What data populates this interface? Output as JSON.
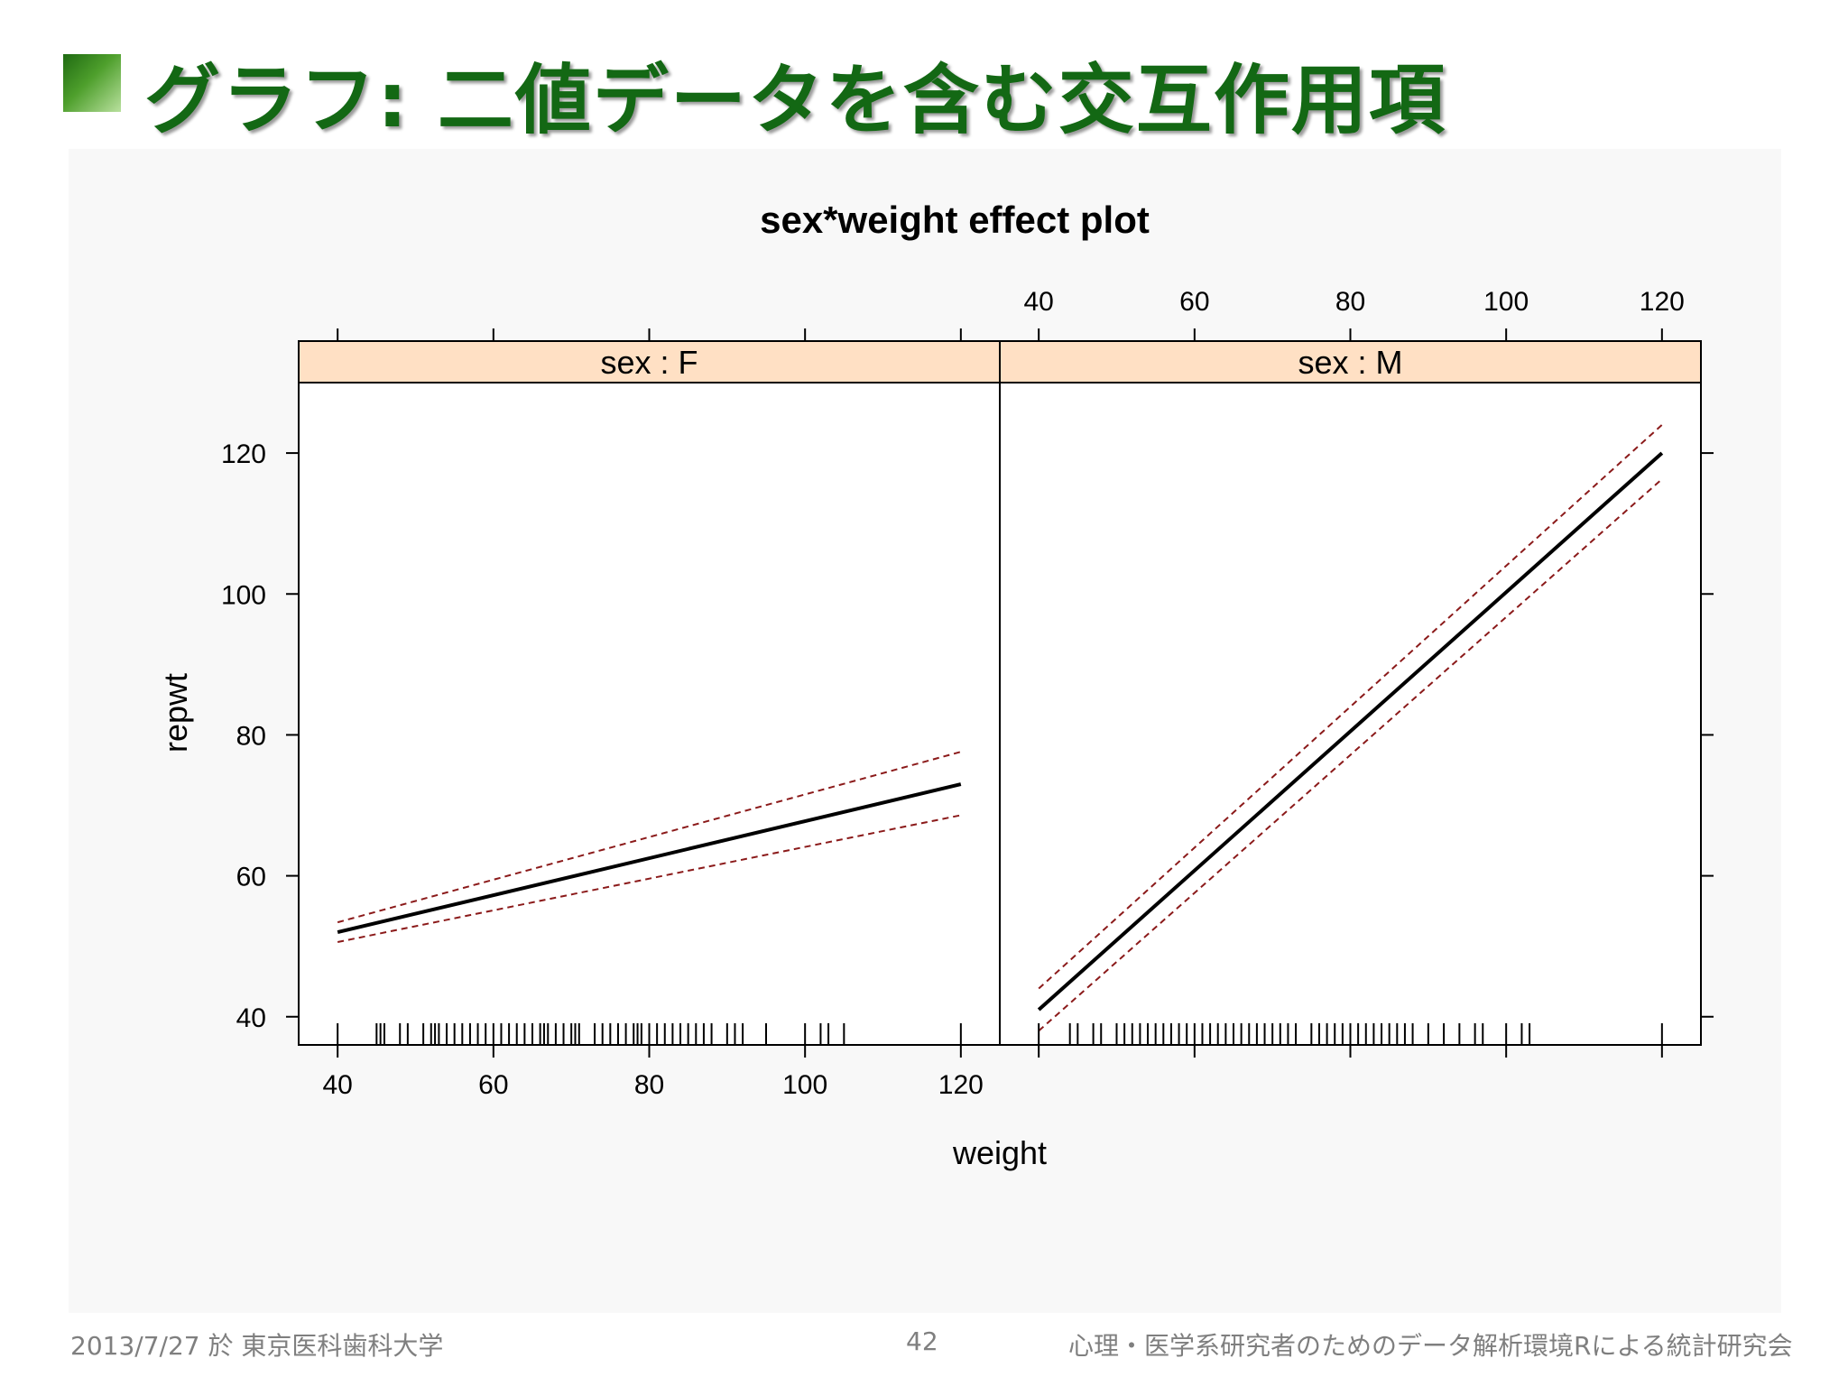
{
  "slide": {
    "title": "グラフ: 二値データを含む交互作用項",
    "footer_left": "2013/7/27 於 東京医科歯科大学",
    "page_number": "42",
    "footer_right": "心理・医学系研究者のためのデータ解析環境Rによる統計研究会"
  },
  "chart_data": {
    "type": "line",
    "title": "sex*weight effect plot",
    "xlabel": "weight",
    "ylabel": "repwt",
    "xlim": [
      35,
      125
    ],
    "ylim": [
      36,
      130
    ],
    "xticks": [
      "40",
      "60",
      "80",
      "100",
      "120"
    ],
    "yticks": [
      "40",
      "60",
      "80",
      "100",
      "120"
    ],
    "panels": [
      {
        "strip": "sex : F",
        "fit": {
          "x": [
            40,
            120
          ],
          "y": [
            52.0,
            73.0
          ]
        },
        "lower": {
          "x": [
            40,
            120
          ],
          "y": [
            50.6,
            68.6
          ]
        },
        "upper": {
          "x": [
            40,
            120
          ],
          "y": [
            53.4,
            77.6
          ]
        },
        "rug": [
          40,
          45,
          45.5,
          46,
          48,
          49,
          51,
          52,
          52.5,
          53,
          54,
          55,
          56,
          57,
          58,
          59,
          60,
          61,
          62,
          63,
          64,
          65,
          66,
          66.5,
          67,
          68,
          69,
          70,
          70.5,
          71,
          73,
          74,
          75,
          76,
          77,
          78,
          78.5,
          79,
          80,
          81,
          82,
          83,
          84,
          85,
          86,
          87,
          88,
          90,
          91,
          92,
          95,
          100,
          102,
          103,
          105,
          120
        ]
      },
      {
        "strip": "sex : M",
        "fit": {
          "x": [
            40,
            120
          ],
          "y": [
            41.0,
            120.0
          ]
        },
        "lower": {
          "x": [
            40,
            120
          ],
          "y": [
            38.0,
            116.3
          ]
        },
        "upper": {
          "x": [
            40,
            120
          ],
          "y": [
            44.0,
            124.0
          ]
        },
        "rug": [
          40,
          44,
          45,
          47,
          48,
          50,
          51,
          52,
          53,
          54,
          55,
          56,
          57,
          58,
          59,
          60,
          61,
          62,
          63,
          64,
          65,
          66,
          67,
          68,
          69,
          70,
          71,
          72,
          73,
          75,
          76,
          77,
          78,
          79,
          80,
          81,
          82,
          83,
          84,
          85,
          86,
          87,
          88,
          90,
          92,
          94,
          96,
          97,
          100,
          102,
          103,
          120
        ]
      }
    ],
    "colors": {
      "fit": "#000000",
      "band": "#8b1a1a",
      "strip": "#ffe0c4"
    }
  }
}
